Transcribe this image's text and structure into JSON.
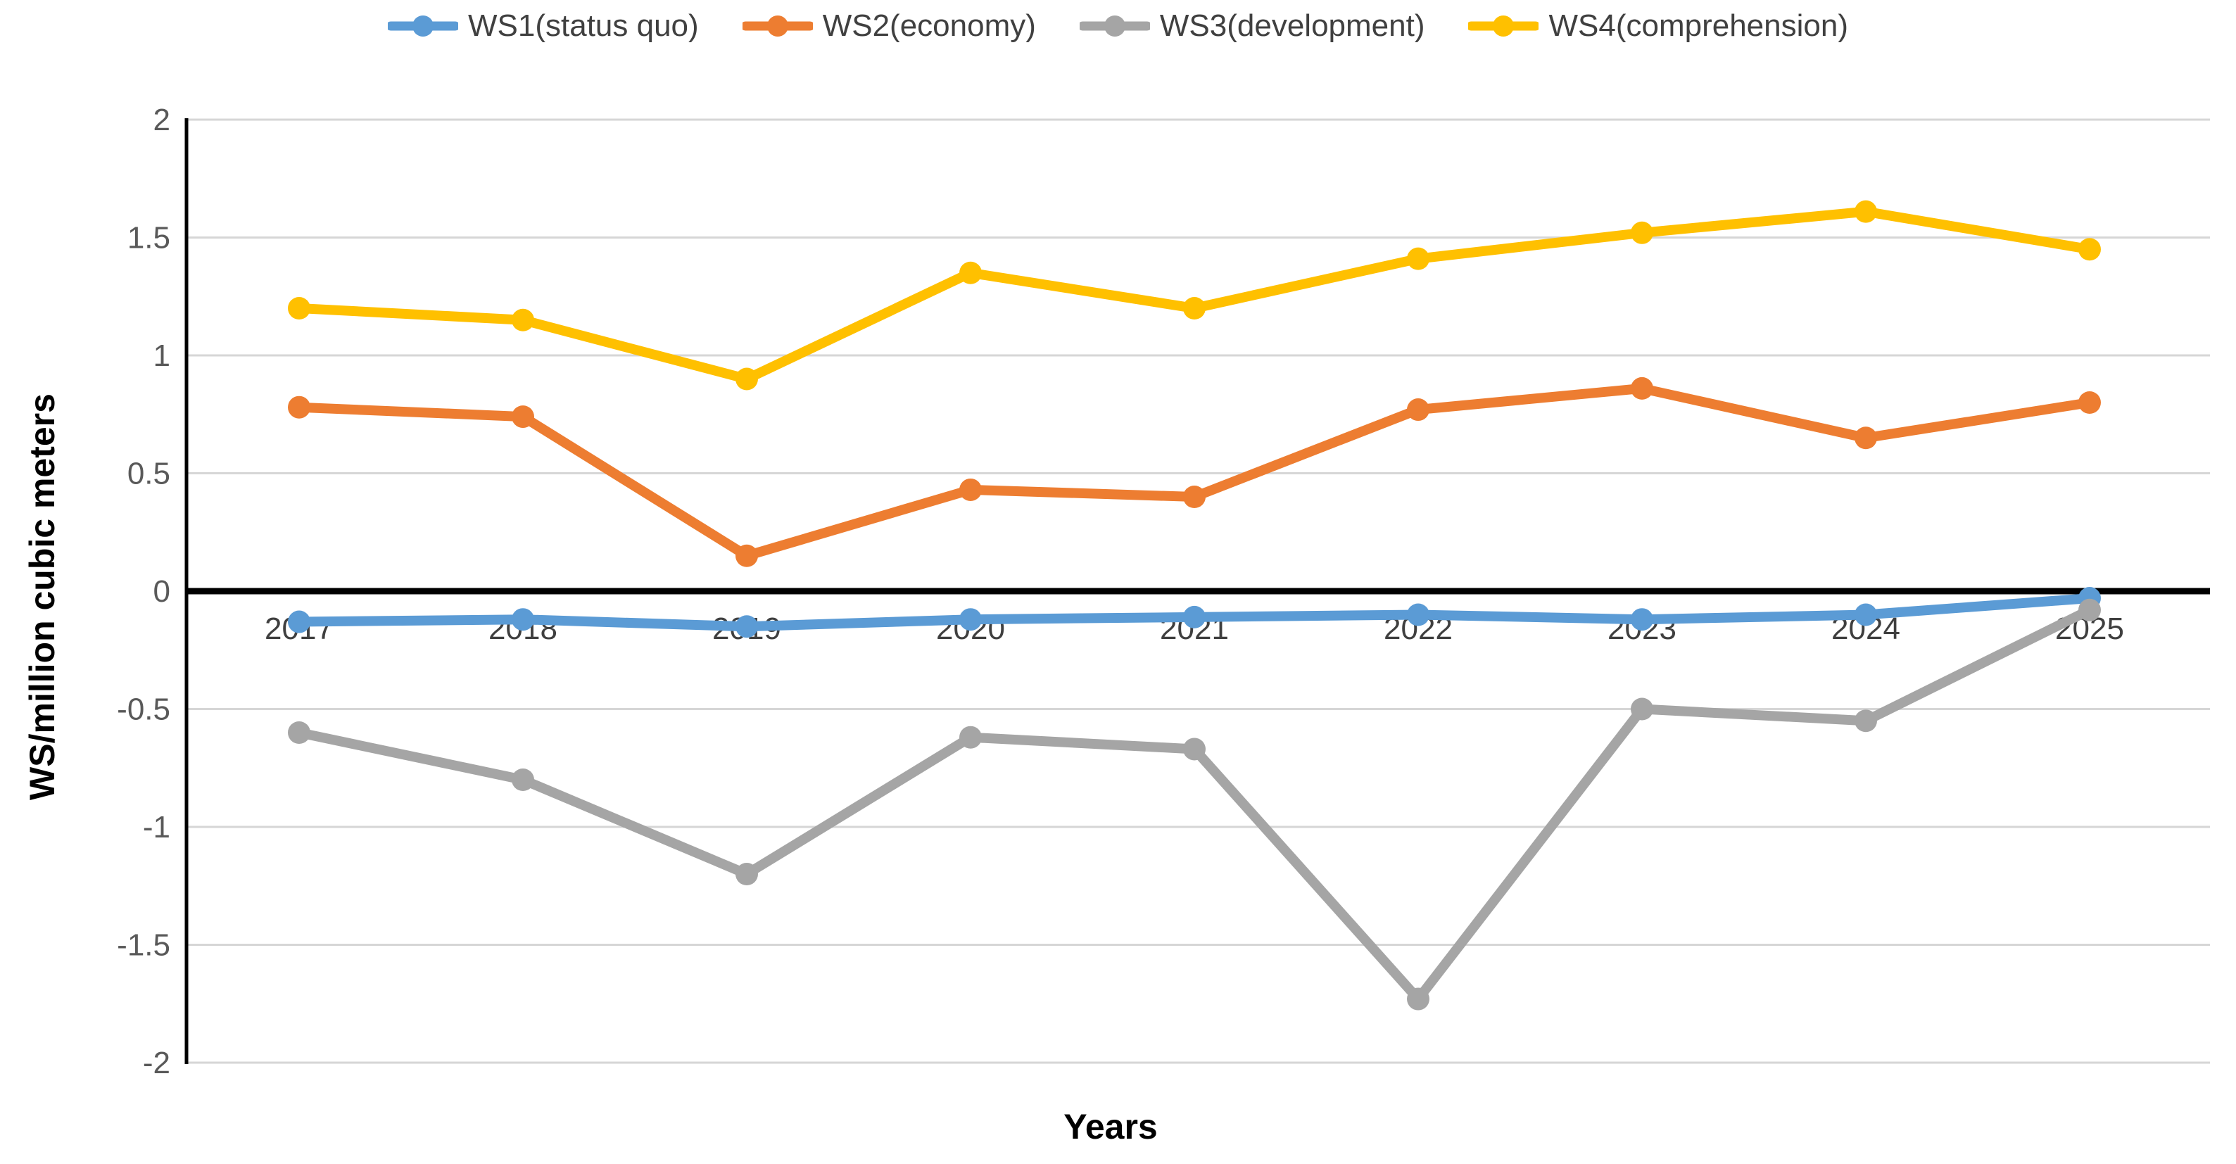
{
  "chart_data": {
    "type": "line",
    "xlabel": "Years",
    "ylabel": "WS/million cubic meters",
    "categories": [
      "2017",
      "2018",
      "2019",
      "2020",
      "2021",
      "2022",
      "2023",
      "2024",
      "2025"
    ],
    "y_ticks": [
      "2",
      "1.5",
      "1",
      "0.5",
      "0",
      "-0.5",
      "-1",
      "-1.5",
      "-2"
    ],
    "ylim": [
      -2,
      2
    ],
    "grid": true,
    "legend_position": "top",
    "series": [
      {
        "name": "WS1(status quo)",
        "color": "#5B9BD5",
        "values": [
          -0.13,
          -0.12,
          -0.15,
          -0.12,
          -0.11,
          -0.1,
          -0.12,
          -0.1,
          -0.03
        ]
      },
      {
        "name": "WS2(economy)",
        "color": "#ED7D31",
        "values": [
          0.78,
          0.74,
          0.15,
          0.43,
          0.4,
          0.77,
          0.86,
          0.65,
          0.8
        ]
      },
      {
        "name": "WS3(development)",
        "color": "#A5A5A5",
        "values": [
          -0.6,
          -0.8,
          -1.2,
          -0.62,
          -0.67,
          -1.73,
          -0.5,
          -0.55,
          -0.08
        ]
      },
      {
        "name": "WS4(comprehension)",
        "color": "#FFC000",
        "values": [
          1.2,
          1.15,
          0.9,
          1.35,
          1.2,
          1.41,
          1.52,
          1.61,
          1.45
        ]
      }
    ],
    "colors": {
      "gridline": "#D6D6D6",
      "zero_line": "#000000",
      "axis_line": "#000000",
      "tick_text": "#595959",
      "year_text": "#3F3F3F"
    }
  }
}
